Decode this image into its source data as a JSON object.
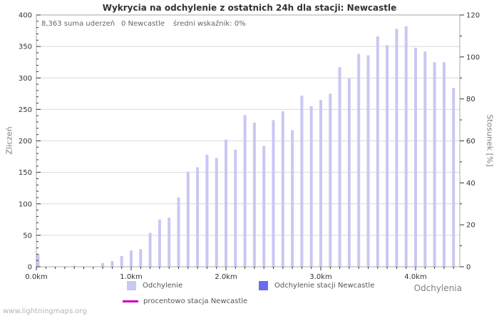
{
  "title": "Wykrycia na odchylenie z ostatnich 24h dla stacji: Newcastle",
  "stats": {
    "sum": "8,363 suma uderzeń",
    "station": "0 Newcastle",
    "avg": "średni wskaźnik: 0%"
  },
  "footer": "www.lightningmaps.org",
  "colors": {
    "bar": "#c8c8f4",
    "station_bar": "#6b6bf0",
    "percent_line": "#c800c8",
    "grid": "#d9d9d9",
    "frame": "#a8a8a8",
    "tick": "#333333",
    "tick_label": "#333333"
  },
  "chart_data": {
    "type": "bar",
    "title": "Wykrycia na odchylenie z ostatnich 24h dla stacji: Newcastle",
    "xlabel": "Odchylenia",
    "ylabel_left": "Zliczeń",
    "ylabel_right": "Stosunek [%]",
    "x_unit": "km",
    "x": [
      0.0,
      0.1,
      0.2,
      0.3,
      0.4,
      0.5,
      0.6,
      0.7,
      0.8,
      0.9,
      1.0,
      1.1,
      1.2,
      1.3,
      1.4,
      1.5,
      1.6,
      1.7,
      1.8,
      1.9,
      2.0,
      2.1,
      2.2,
      2.3,
      2.4,
      2.5,
      2.6,
      2.7,
      2.8,
      2.9,
      3.0,
      3.1,
      3.2,
      3.3,
      3.4,
      3.5,
      3.6,
      3.7,
      3.8,
      3.9,
      4.0,
      4.1,
      4.2,
      4.3,
      4.4
    ],
    "values": [
      20,
      0,
      0,
      0,
      2,
      0,
      0,
      6,
      9,
      17,
      26,
      28,
      54,
      75,
      78,
      110,
      151,
      158,
      178,
      173,
      202,
      186,
      241,
      229,
      192,
      233,
      247,
      217,
      272,
      255,
      265,
      275,
      317,
      299,
      338,
      336,
      366,
      352,
      378,
      382,
      348,
      342,
      325,
      325,
      284
    ],
    "series_name": "Odchylenie",
    "ylim_left": [
      0,
      400
    ],
    "ytick_step_left": 50,
    "ytick_minor_left": 10,
    "ylim_right": [
      0,
      120
    ],
    "ytick_step_right": 20,
    "ytick_minor_right": 10,
    "xlim_km": [
      0,
      4.47
    ],
    "xtick_step_km": 1.0,
    "xtick_minor_km": 0.1,
    "x_tick_labels": [
      "0.0km",
      "1.0km",
      "2.0km",
      "3.0km",
      "4.0km"
    ],
    "grid": true,
    "legend_position": "below-chart",
    "legend": [
      {
        "swatch": "square",
        "color": "#c8c8f4",
        "label": "Odchylenie"
      },
      {
        "swatch": "square",
        "color": "#6b6bf0",
        "label": "Odchylenie stacji Newcastle"
      },
      {
        "swatch": "line",
        "color": "#c800c8",
        "label": "procentowo stacja Newcastle"
      }
    ]
  }
}
